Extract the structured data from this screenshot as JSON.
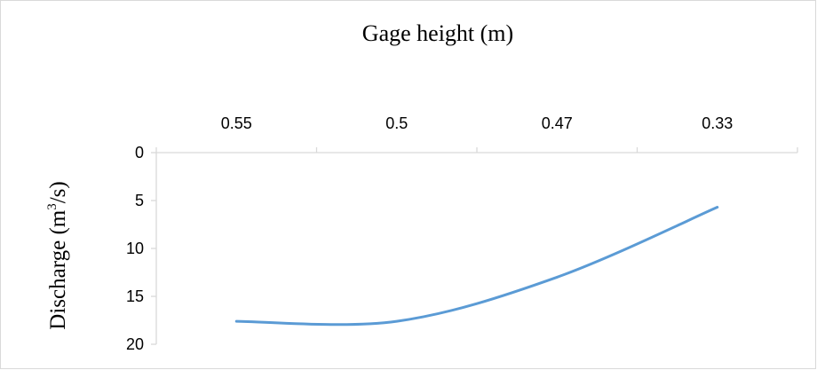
{
  "chart_data": {
    "type": "line",
    "title": "Gage height  (m)",
    "xlabel": "",
    "ylabel_main": "Discharge (m",
    "ylabel_sup": "3",
    "ylabel_tail": "/s)",
    "x_axis_position": "top",
    "y_axis_reversed": true,
    "categories": [
      "0.55",
      "0.5",
      "0.47",
      "0.33"
    ],
    "series": [
      {
        "values": [
          17.6,
          17.6,
          13.0,
          5.7
        ],
        "color": "#5b9bd5"
      }
    ],
    "ylim": [
      0,
      20
    ],
    "yticks": [
      "0",
      "5",
      "10",
      "15",
      "20"
    ],
    "grid": false,
    "legend": "none",
    "smooth": true
  }
}
